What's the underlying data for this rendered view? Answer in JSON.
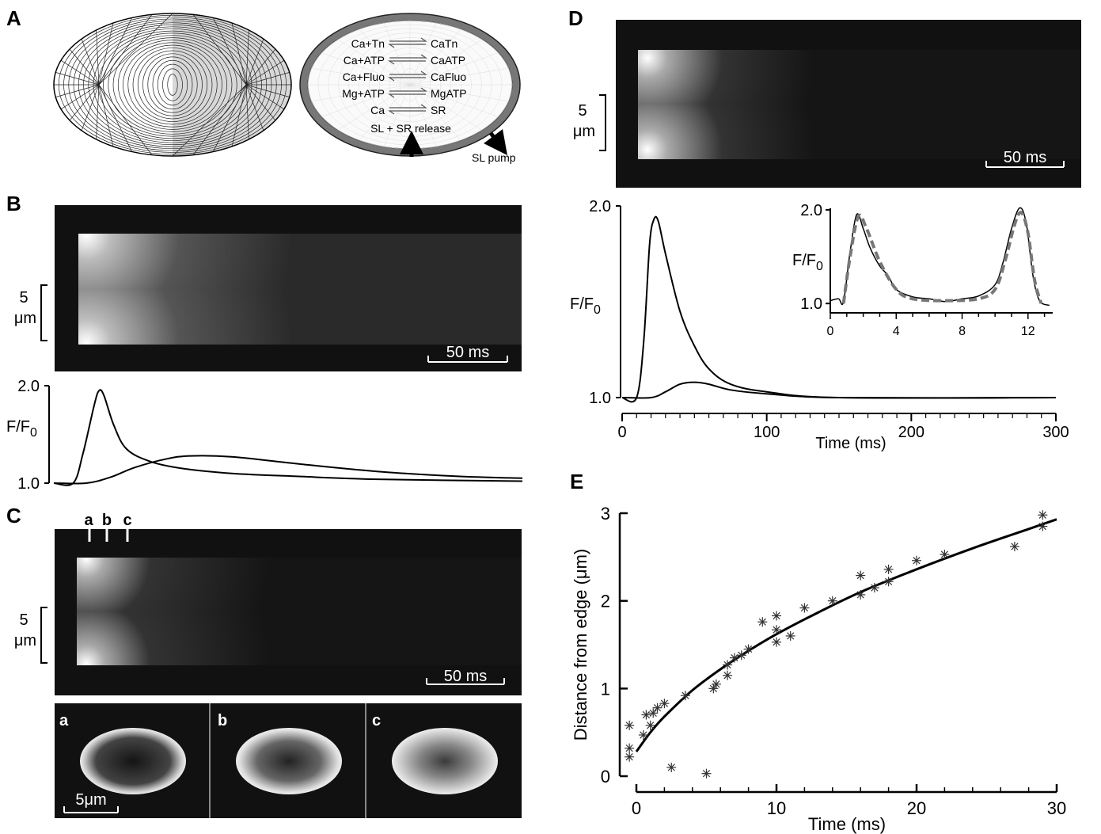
{
  "panels": {
    "A": "A",
    "B": "B",
    "C": "C",
    "D": "D",
    "E": "E"
  },
  "panelA": {
    "reactions": [
      {
        "left": "Ca+Tn",
        "right": "CaTn"
      },
      {
        "left": "Ca+ATP",
        "right": "CaATP"
      },
      {
        "left": "Ca+Fluo",
        "right": "CaFluo"
      },
      {
        "left": "Mg+ATP",
        "right": "MgATP"
      },
      {
        "left": "Ca",
        "right": "SR"
      }
    ],
    "release_label": "SL + SR release",
    "pump_label": "SL pump"
  },
  "linescan": {
    "scale_um": "5",
    "scale_um_unit": "μm",
    "scale_ms": "50 ms"
  },
  "panelC": {
    "markers": [
      "a",
      "b",
      "c"
    ],
    "sub_labels": [
      "a",
      "b",
      "c"
    ],
    "scale_label": "5μm"
  },
  "chart_data": [
    {
      "id": "B-trace",
      "type": "line",
      "ylabel": "F/F0",
      "yticks": [
        "2.0",
        "1.0"
      ],
      "ylim": [
        1.0,
        2.0
      ],
      "series": [
        {
          "values": [
            [
              0,
              1.0
            ],
            [
              12,
              1.0
            ],
            [
              18,
              1.3
            ],
            [
              25,
              1.8
            ],
            [
              28,
              1.95
            ],
            [
              31,
              1.9
            ],
            [
              37,
              1.6
            ],
            [
              45,
              1.35
            ],
            [
              60,
              1.22
            ],
            [
              80,
              1.15
            ],
            [
              110,
              1.1
            ],
            [
              150,
              1.07
            ],
            [
              200,
              1.04
            ],
            [
              290,
              1.02
            ]
          ]
        },
        {
          "values": [
            [
              0,
              1.0
            ],
            [
              20,
              1.0
            ],
            [
              35,
              1.06
            ],
            [
              50,
              1.16
            ],
            [
              70,
              1.25
            ],
            [
              85,
              1.28
            ],
            [
              110,
              1.27
            ],
            [
              150,
              1.2
            ],
            [
              200,
              1.12
            ],
            [
              250,
              1.07
            ],
            [
              290,
              1.05
            ]
          ]
        }
      ]
    },
    {
      "id": "D-main",
      "type": "line",
      "xlabel": "Time (ms)",
      "ylabel": "F/F0",
      "xlim": [
        0,
        300
      ],
      "xticks": [
        "0",
        "100",
        "200",
        "300"
      ],
      "yticks": [
        "2.0",
        "1.0"
      ],
      "ylim": [
        1.0,
        2.0
      ],
      "series": [
        {
          "values": [
            [
              0,
              1.0
            ],
            [
              10,
              1.0
            ],
            [
              15,
              1.3
            ],
            [
              19,
              1.8
            ],
            [
              22,
              1.93
            ],
            [
              25,
              1.92
            ],
            [
              30,
              1.75
            ],
            [
              40,
              1.45
            ],
            [
              50,
              1.27
            ],
            [
              60,
              1.15
            ],
            [
              75,
              1.07
            ],
            [
              100,
              1.03
            ],
            [
              150,
              1.0
            ],
            [
              300,
              1.0
            ]
          ]
        },
        {
          "values": [
            [
              0,
              1.0
            ],
            [
              20,
              1.0
            ],
            [
              30,
              1.03
            ],
            [
              40,
              1.07
            ],
            [
              50,
              1.08
            ],
            [
              60,
              1.07
            ],
            [
              75,
              1.04
            ],
            [
              100,
              1.02
            ],
            [
              150,
              1.0
            ],
            [
              300,
              1.0
            ]
          ]
        }
      ]
    },
    {
      "id": "D-inset",
      "type": "line",
      "ylabel": "F/F0",
      "xlim": [
        0,
        13.5
      ],
      "ylim": [
        0.9,
        2.05
      ],
      "xticks": [
        "0",
        "4",
        "8",
        "12"
      ],
      "yticks": [
        "2.0",
        "1.0"
      ],
      "series": [
        {
          "style": "solid",
          "values": [
            [
              0,
              1.03
            ],
            [
              0.5,
              1.05
            ],
            [
              0.8,
              1.02
            ],
            [
              1.2,
              1.55
            ],
            [
              1.6,
              1.95
            ],
            [
              2.0,
              1.8
            ],
            [
              2.4,
              1.6
            ],
            [
              3.0,
              1.4
            ],
            [
              3.5,
              1.3
            ],
            [
              4.0,
              1.15
            ],
            [
              5,
              1.07
            ],
            [
              6,
              1.05
            ],
            [
              7,
              1.02
            ],
            [
              8,
              1.05
            ],
            [
              9,
              1.08
            ],
            [
              10,
              1.2
            ],
            [
              10.5,
              1.45
            ],
            [
              11.0,
              1.8
            ],
            [
              11.5,
              2.02
            ],
            [
              11.9,
              1.85
            ],
            [
              12.3,
              1.3
            ],
            [
              12.7,
              1.03
            ],
            [
              13.3,
              0.98
            ]
          ]
        },
        {
          "style": "dashed",
          "values": [
            [
              0.8,
              1.0
            ],
            [
              1.2,
              1.5
            ],
            [
              1.7,
              1.93
            ],
            [
              2.2,
              1.8
            ],
            [
              3,
              1.45
            ],
            [
              4,
              1.15
            ],
            [
              5,
              1.05
            ],
            [
              7,
              1.03
            ],
            [
              9,
              1.05
            ],
            [
              10,
              1.15
            ],
            [
              10.6,
              1.45
            ],
            [
              11.2,
              1.85
            ],
            [
              11.6,
              1.97
            ],
            [
              12.0,
              1.75
            ],
            [
              12.4,
              1.25
            ],
            [
              12.8,
              1.0
            ]
          ]
        }
      ]
    },
    {
      "id": "E",
      "type": "scatter",
      "xlabel": "Time (ms)",
      "ylabel": "Distance from edge (μm)",
      "xlim": [
        -1,
        30
      ],
      "ylim": [
        0,
        3
      ],
      "xticks": [
        "0",
        "10",
        "20",
        "30"
      ],
      "yticks": [
        "0",
        "1",
        "2",
        "3"
      ],
      "points": [
        [
          -0.5,
          0.22
        ],
        [
          -0.5,
          0.32
        ],
        [
          -0.5,
          0.58
        ],
        [
          0.5,
          0.47
        ],
        [
          0.7,
          0.7
        ],
        [
          1,
          0.58
        ],
        [
          1.2,
          0.72
        ],
        [
          1.5,
          0.78
        ],
        [
          2,
          0.83
        ],
        [
          2.5,
          0.1
        ],
        [
          3.5,
          0.92
        ],
        [
          5,
          0.03
        ],
        [
          5.5,
          1.0
        ],
        [
          5.7,
          1.05
        ],
        [
          6.5,
          1.15
        ],
        [
          6.5,
          1.27
        ],
        [
          7,
          1.35
        ],
        [
          7.5,
          1.38
        ],
        [
          8,
          1.45
        ],
        [
          9,
          1.76
        ],
        [
          10,
          1.53
        ],
        [
          10,
          1.67
        ],
        [
          10,
          1.83
        ],
        [
          11,
          1.6
        ],
        [
          12,
          1.92
        ],
        [
          14,
          2.0
        ],
        [
          16,
          2.07
        ],
        [
          16,
          2.29
        ],
        [
          17,
          2.15
        ],
        [
          18,
          2.22
        ],
        [
          18,
          2.36
        ],
        [
          20,
          2.46
        ],
        [
          22,
          2.53
        ],
        [
          27,
          2.62
        ],
        [
          29,
          2.85
        ],
        [
          29,
          2.98
        ]
      ],
      "fit": [
        [
          0,
          0.28
        ],
        [
          1,
          0.5
        ],
        [
          2,
          0.68
        ],
        [
          4,
          0.98
        ],
        [
          6,
          1.22
        ],
        [
          8,
          1.43
        ],
        [
          10,
          1.62
        ],
        [
          13,
          1.87
        ],
        [
          16,
          2.1
        ],
        [
          20,
          2.36
        ],
        [
          24,
          2.6
        ],
        [
          28,
          2.82
        ],
        [
          30,
          2.93
        ]
      ]
    }
  ]
}
